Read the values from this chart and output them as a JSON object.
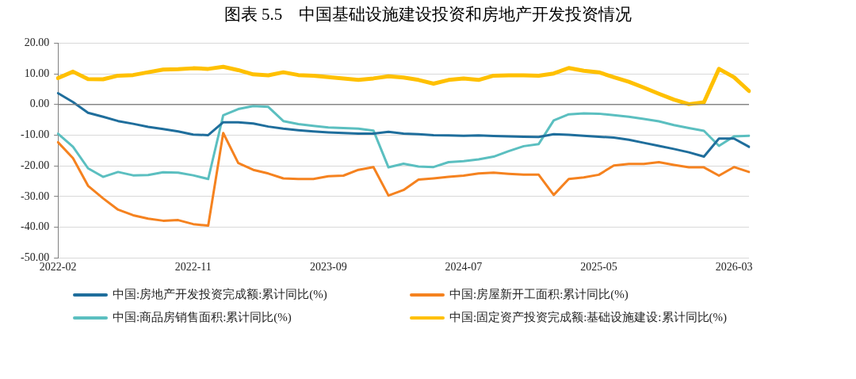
{
  "chart_data": {
    "type": "line",
    "title": "图表 5.5　中国基础设施建设投资和房地产开发投资情况",
    "categories": [
      "2022-02",
      null,
      null,
      null,
      null,
      null,
      null,
      null,
      null,
      "2022-11",
      null,
      null,
      null,
      null,
      null,
      null,
      null,
      null,
      "2023-09",
      null,
      null,
      null,
      null,
      null,
      null,
      null,
      null,
      "2024-07",
      null,
      null,
      null,
      null,
      null,
      null,
      null,
      null,
      "2025-05",
      null,
      null,
      null,
      null,
      null,
      null,
      null,
      null,
      "2026-03",
      null
    ],
    "series": [
      {
        "name": "中国:房地产开发投资完成额:累计同比(%)",
        "color": "#1f6e9c",
        "values": [
          3.7,
          0.8,
          -2.7,
          -4.0,
          -5.4,
          -6.3,
          -7.3,
          -8.0,
          -8.8,
          -9.8,
          -10.0,
          -5.8,
          -5.8,
          -6.2,
          -7.2,
          -7.9,
          -8.4,
          -8.8,
          -9.1,
          -9.3,
          -9.5,
          -9.5,
          -8.9,
          -9.5,
          -9.7,
          -10.0,
          -10.1,
          -10.2,
          -10.1,
          -10.3,
          -10.4,
          -10.5,
          -10.6,
          -9.7,
          -9.9,
          -10.2,
          -10.5,
          -10.8,
          -11.5,
          -12.5,
          -13.5,
          -14.5,
          -15.6,
          -17.0,
          -11.1,
          -11.1,
          -13.8
        ]
      },
      {
        "name": "中国:房屋新开工面积:累计同比(%)",
        "color": "#f5821f",
        "values": [
          -12.3,
          -17.5,
          -26.5,
          -30.6,
          -34.3,
          -36.1,
          -37.2,
          -37.9,
          -37.7,
          -39.0,
          -39.5,
          -9.3,
          -19.1,
          -21.3,
          -22.5,
          -24.1,
          -24.3,
          -24.3,
          -23.4,
          -23.2,
          -21.3,
          -20.4,
          -29.7,
          -27.9,
          -24.5,
          -24.1,
          -23.6,
          -23.2,
          -22.5,
          -22.2,
          -22.6,
          -22.9,
          -22.9,
          -29.5,
          -24.3,
          -23.8,
          -22.9,
          -19.9,
          -19.4,
          -19.4,
          -18.8,
          -19.7,
          -20.5,
          -20.5,
          -23.2,
          -20.4,
          -22.0
        ]
      },
      {
        "name": "中国:商品房销售面积:累计同比(%)",
        "color": "#5bbfc0",
        "values": [
          -9.5,
          -13.8,
          -20.8,
          -23.6,
          -22.0,
          -23.1,
          -23.0,
          -22.1,
          -22.2,
          -23.1,
          -24.3,
          -3.5,
          -1.5,
          -0.5,
          -0.8,
          -5.4,
          -6.4,
          -7.0,
          -7.5,
          -7.7,
          -7.9,
          -8.5,
          -20.5,
          -19.3,
          -20.2,
          -20.4,
          -18.8,
          -18.5,
          -17.9,
          -17.0,
          -15.2,
          -13.6,
          -12.9,
          -5.2,
          -3.2,
          -2.9,
          -3.0,
          -3.5,
          -4.0,
          -4.7,
          -5.5,
          -6.7,
          -7.7,
          -8.6,
          -13.5,
          -10.4,
          -10.2
        ]
      },
      {
        "name": "中国:固定资产投资完成额:基础设施建设:累计同比(%)",
        "color": "#ffc000",
        "values": [
          8.6,
          10.7,
          8.3,
          8.2,
          9.4,
          9.6,
          10.5,
          11.4,
          11.5,
          11.8,
          11.6,
          12.3,
          11.2,
          9.8,
          9.5,
          10.5,
          9.6,
          9.4,
          8.9,
          8.5,
          8.0,
          8.5,
          9.2,
          8.8,
          8.0,
          6.8,
          8.0,
          8.5,
          8.0,
          9.4,
          9.5,
          9.5,
          9.4,
          10.1,
          11.9,
          11.0,
          10.5,
          8.9,
          7.4,
          5.5,
          3.5,
          1.6,
          0.1,
          0.7,
          11.6,
          8.9,
          4.4
        ]
      }
    ],
    "ylim": [
      -50,
      20
    ],
    "yticks": [
      {
        "value": -50,
        "label": "-50.00"
      },
      {
        "value": -40,
        "label": "-40.00"
      },
      {
        "value": -30,
        "label": "-30.00"
      },
      {
        "value": -20,
        "label": "-20.00"
      },
      {
        "value": -10,
        "label": "-10.00"
      },
      {
        "value": 0,
        "label": "0.00"
      },
      {
        "value": 10,
        "label": "10.00"
      },
      {
        "value": 20,
        "label": "20.00"
      }
    ],
    "grid": "y",
    "legend": "bottom",
    "marker": "none",
    "line_style": "solid"
  }
}
